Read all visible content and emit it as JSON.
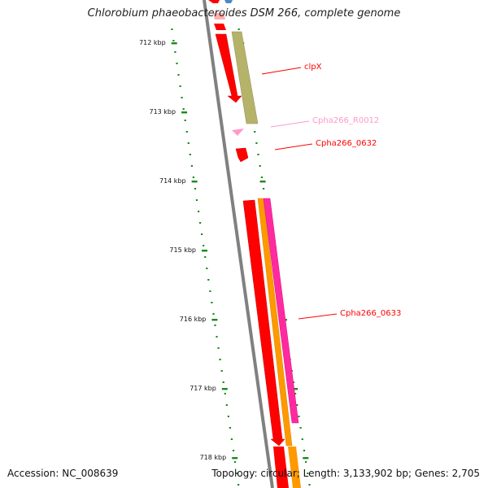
{
  "title": "Chlorobium phaeobacteroides DSM 266, complete genome",
  "footer": {
    "accession": "Accession: NC_008639",
    "stats": "Topology: circular; Length: 3,133,902 bp; Genes: 2,705"
  },
  "colors": {
    "ruler": "#1a8a1a",
    "backbone": "#808080",
    "cds": "#ff0000",
    "cds_orange": "#ff9900",
    "cds_magenta": "#ff2aa0",
    "cds_khaki": "#b5b36a",
    "rna": "#ff99cc",
    "blue": "#4d88c4"
  },
  "ticks": [
    {
      "kbp": 712,
      "label": "712 kbp"
    },
    {
      "kbp": 713,
      "label": "713 kbp"
    },
    {
      "kbp": 714,
      "label": "714 kbp"
    },
    {
      "kbp": 715,
      "label": "715 kbp"
    },
    {
      "kbp": 716,
      "label": "716 kbp"
    },
    {
      "kbp": 717,
      "label": "717 kbp"
    },
    {
      "kbp": 718,
      "label": "718 kbp"
    }
  ],
  "labels": [
    {
      "name": "clpX",
      "color": "#ff0000"
    },
    {
      "name": "Cpha266_R0012",
      "color": "#ff99cc"
    },
    {
      "name": "Cpha266_0632",
      "color": "#ff0000"
    },
    {
      "name": "Cpha266_0633",
      "color": "#ff0000"
    }
  ]
}
